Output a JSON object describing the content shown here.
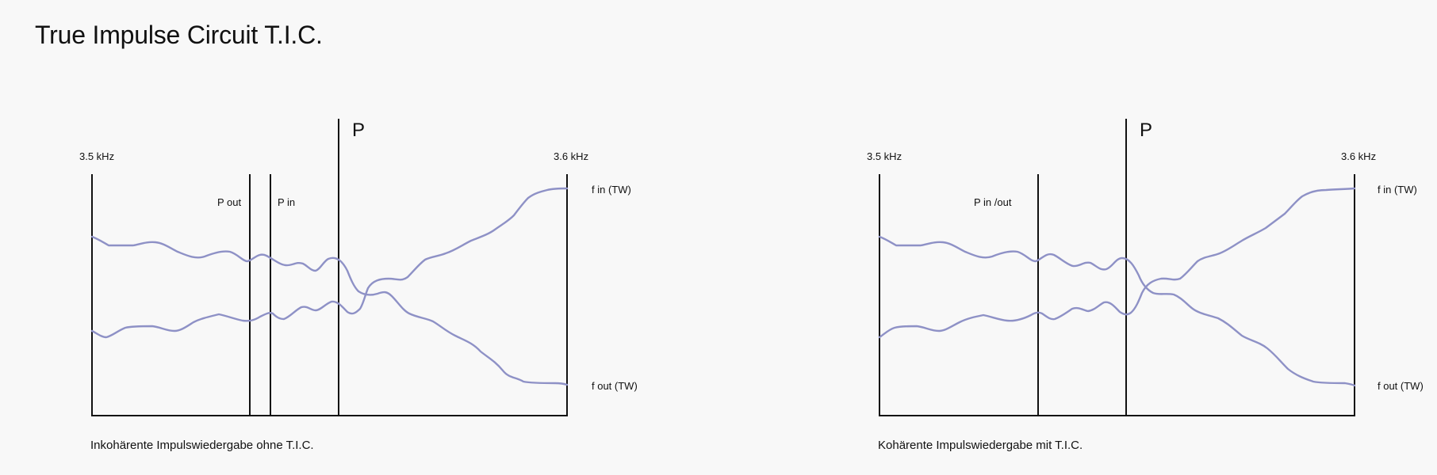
{
  "page": {
    "title": "True Impulse Circuit T.I.C."
  },
  "colors": {
    "background": "#f8f8f8",
    "axis": "#111111",
    "curve": "#8e91c6"
  },
  "diagrams": [
    {
      "freq_low": "3.5 kHz",
      "freq_high": "3.6 kHz",
      "marker": "P",
      "marker_labels": [
        "P out",
        "P in"
      ],
      "curve_top_label": "f in (TW)",
      "curve_bottom_label": "f out (TW)",
      "caption": "Inkohärente Impulswiedergabe ohne T.I.C."
    },
    {
      "freq_low": "3.5 kHz",
      "freq_high": "3.6 kHz",
      "marker": "P",
      "marker_labels": [
        "P in /out"
      ],
      "curve_top_label": "f in (TW)",
      "curve_bottom_label": "f out (TW)",
      "caption": "Kohärente Impulswiedergabe mit T.I.C."
    }
  ]
}
